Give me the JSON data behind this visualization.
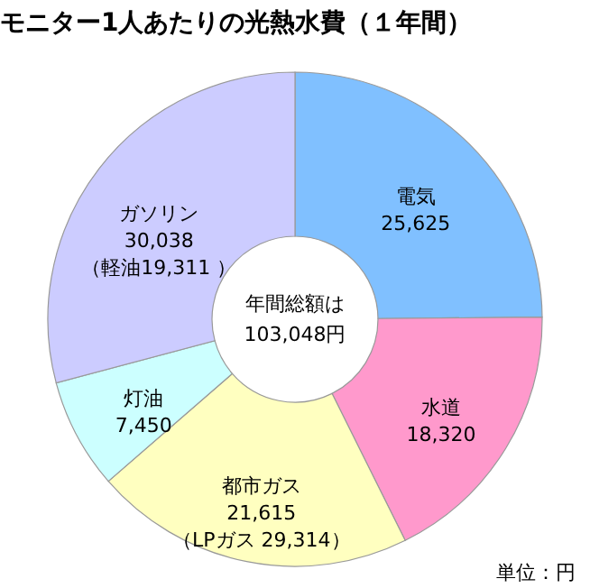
{
  "chart_data": {
    "type": "donut",
    "title": "モニター1人あたりの光熱水費（１年間）",
    "categories": [
      "電気",
      "水道",
      "都市ガス",
      "灯油",
      "ガソリン"
    ],
    "values": [
      25625,
      18320,
      21615,
      7450,
      30038
    ],
    "value_labels": [
      "25,625",
      "18,320",
      "21,615",
      "7,450",
      "30,038"
    ],
    "colors": [
      "#80c0ff",
      "#ff99cc",
      "#ffffc0",
      "#ccffff",
      "#ccccff"
    ],
    "legend": false,
    "annotations": [
      "年間総額は",
      "103,048円",
      "単位：円",
      {
        "text": "（LPガス 29,314）",
        "x": "都市ガス"
      },
      {
        "text": "（軽油19,311 ）",
        "x": "ガソリン"
      }
    ]
  }
}
